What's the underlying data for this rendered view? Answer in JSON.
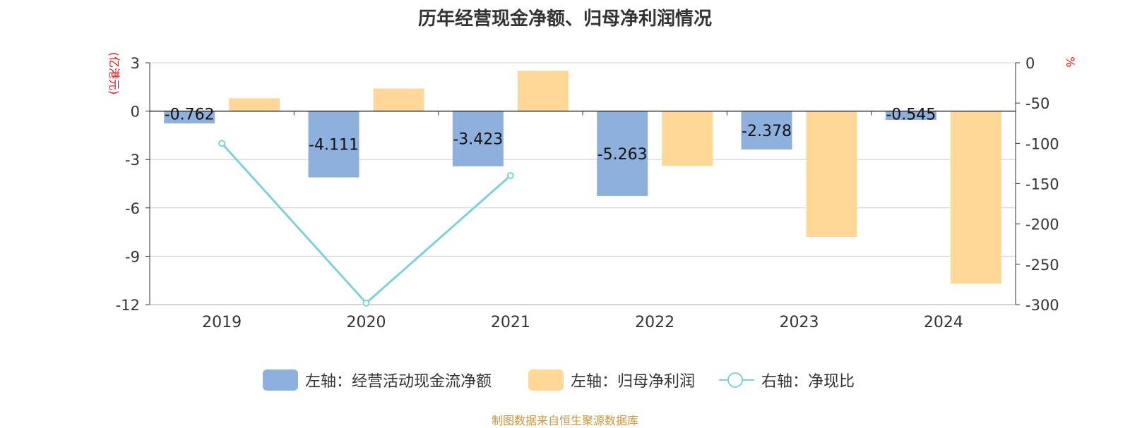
{
  "chart_data": {
    "type": "bar",
    "title": "历年经营现金净额、归母净利润情况",
    "categories": [
      "2019",
      "2020",
      "2021",
      "2022",
      "2023",
      "2024"
    ],
    "left_axis": {
      "label": "(亿港元)",
      "range": [
        -12,
        3
      ],
      "ticks": [
        "3",
        "0",
        "-3",
        "-6",
        "-9",
        "-12"
      ]
    },
    "right_axis": {
      "label": "%",
      "range": [
        -300,
        0
      ],
      "ticks": [
        "0",
        "-50",
        "-100",
        "-150",
        "-200",
        "-250",
        "-300"
      ]
    },
    "grid": true,
    "legend_position": "bottom",
    "series": [
      {
        "name": "左轴：经营活动现金流净额",
        "type": "bar",
        "axis": "left",
        "color": "#8eb0dc",
        "values": [
          -0.762,
          -4.111,
          -3.423,
          -5.263,
          -2.378,
          -0.545
        ],
        "labels": [
          "-0.762",
          "-4.111",
          "-3.423",
          "-5.263",
          "-2.378",
          "-0.545"
        ]
      },
      {
        "name": "左轴：归母净利润",
        "type": "bar",
        "axis": "left",
        "color": "#ffd898",
        "values": [
          0.8,
          1.4,
          2.5,
          -3.4,
          -7.8,
          -10.7
        ]
      },
      {
        "name": "右轴：净现比",
        "type": "line",
        "axis": "right",
        "color": "#7fd1d9",
        "values": [
          -100,
          -298,
          -140,
          null,
          null,
          null
        ]
      }
    ]
  },
  "source": "制图数据来自恒生聚源数据库"
}
